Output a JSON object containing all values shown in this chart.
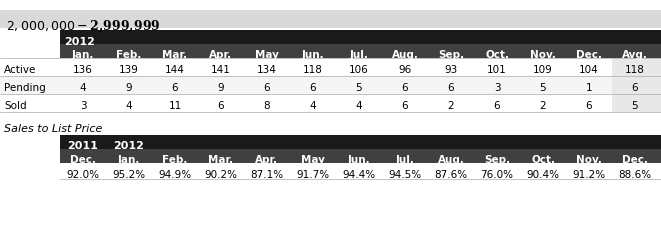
{
  "title": "$2,000,000 - $2,999,999",
  "title_bg": "#d9d9d9",
  "year_header": "2012",
  "year_header_bg": "#1a1a1a",
  "year_header_color": "#ffffff",
  "col_headers": [
    "Jan.",
    "Feb.",
    "Mar.",
    "Apr.",
    "May",
    "Jun.",
    "Jul.",
    "Aug.",
    "Sep.",
    "Oct.",
    "Nov.",
    "Dec.",
    "Avg."
  ],
  "col_header_bg": "#404040",
  "col_header_color": "#ffffff",
  "row_labels": [
    "Active",
    "Pending",
    "Sold"
  ],
  "active_values": [
    136,
    139,
    144,
    141,
    134,
    118,
    106,
    96,
    93,
    101,
    109,
    104,
    118
  ],
  "pending_values": [
    4,
    9,
    6,
    9,
    6,
    6,
    5,
    6,
    6,
    3,
    5,
    1,
    6
  ],
  "sold_values": [
    3,
    4,
    11,
    6,
    8,
    4,
    4,
    6,
    2,
    6,
    2,
    6,
    5
  ],
  "avg_bg": "#e0e0e0",
  "row_bg_white": "#ffffff",
  "row_bg_light": "#f0f0f0",
  "section2_label": "Sales to List Price",
  "year2011": "2011",
  "year2012": "2012",
  "sp_col_headers": [
    "Dec.",
    "Jan.",
    "Feb.",
    "Mar.",
    "Apr.",
    "May",
    "Jun.",
    "Jul.",
    "Aug.",
    "Sep.",
    "Oct.",
    "Nov.",
    "Dec."
  ],
  "sp_values": [
    "92.0%",
    "95.2%",
    "94.9%",
    "90.2%",
    "87.1%",
    "91.7%",
    "94.4%",
    "94.5%",
    "87.6%",
    "76.0%",
    "90.4%",
    "91.2%",
    "88.6%"
  ],
  "font_size": 7.5,
  "header_font_size": 8.0,
  "title_font_size": 9.0
}
